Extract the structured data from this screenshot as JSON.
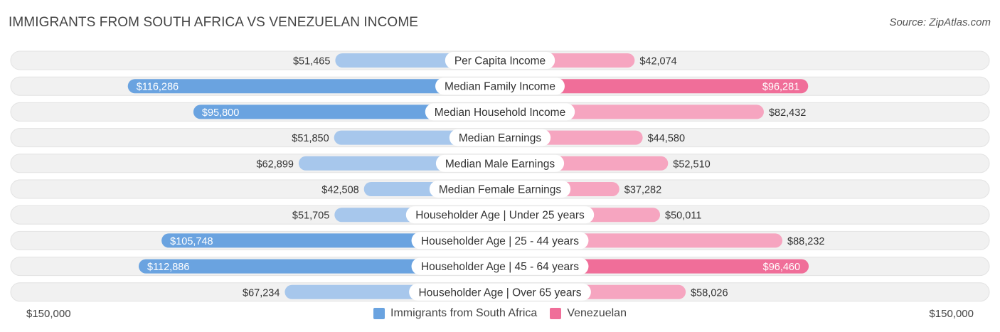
{
  "title": "IMMIGRANTS FROM SOUTH AFRICA VS VENEZUELAN INCOME",
  "source": "Source: ZipAtlas.com",
  "axis": {
    "left_label": "$150,000",
    "right_label": "$150,000"
  },
  "legend": [
    {
      "label": "Immigrants from South Africa",
      "color": "#6aa3e0"
    },
    {
      "label": "Venezuelan",
      "color": "#f06e99"
    }
  ],
  "chart_data": {
    "type": "bar",
    "orientation": "diverging-horizontal",
    "xlim": [
      0,
      150000
    ],
    "categories": [
      "Per Capita Income",
      "Median Family Income",
      "Median Household Income",
      "Median Earnings",
      "Median Male Earnings",
      "Median Female Earnings",
      "Householder Age | Under 25 years",
      "Householder Age | 25 - 44 years",
      "Householder Age | 45 - 64 years",
      "Householder Age | Over 65 years"
    ],
    "series": [
      {
        "name": "Immigrants from South Africa",
        "side": "left",
        "color_strong": "#6aa3e0",
        "color_light": "#a7c7ec",
        "values": [
          51465,
          116286,
          95800,
          51850,
          62899,
          42508,
          51705,
          105748,
          112886,
          67234
        ],
        "labels": [
          "$51,465",
          "$116,286",
          "$95,800",
          "$51,850",
          "$62,899",
          "$42,508",
          "$51,705",
          "$105,748",
          "$112,886",
          "$67,234"
        ]
      },
      {
        "name": "Venezuelan",
        "side": "right",
        "color_strong": "#f06e99",
        "color_light": "#f6a5c0",
        "values": [
          42074,
          96281,
          82432,
          44580,
          52510,
          37282,
          50011,
          88232,
          96460,
          58026
        ],
        "labels": [
          "$42,074",
          "$96,281",
          "$82,432",
          "$44,580",
          "$52,510",
          "$37,282",
          "$50,011",
          "$88,232",
          "$96,460",
          "$58,026"
        ]
      }
    ]
  }
}
